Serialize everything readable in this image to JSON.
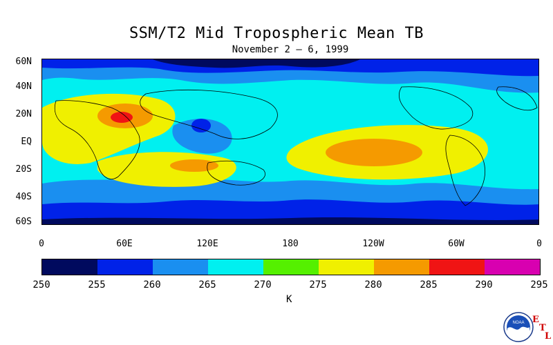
{
  "title": "SSM/T2 Mid Tropospheric Mean TB",
  "subtitle": "November 2 – 6, 1999",
  "latitude_labels": [
    "60N",
    "40N",
    "20N",
    "EQ",
    "20S",
    "40S",
    "60S"
  ],
  "longitude_labels": [
    "0",
    "60E",
    "120E",
    "180",
    "120W",
    "60W",
    "0"
  ],
  "colorbar": {
    "ticks": [
      "250",
      "255",
      "260",
      "265",
      "270",
      "275",
      "280",
      "285",
      "290",
      "295"
    ],
    "colors": [
      "#000a5e",
      "#0022e8",
      "#1a8ff0",
      "#00f0f0",
      "#55f000",
      "#f0f000",
      "#f59a00",
      "#f01414",
      "#d800b0"
    ],
    "unit": "K"
  },
  "field": {
    "variable": "Brightness temperature (K)",
    "background_class": "265-270",
    "regions": [
      {
        "name": "north-band-mid",
        "class": "260-265"
      },
      {
        "name": "north-polar-band",
        "class": "255-260"
      },
      {
        "name": "north-polar-core",
        "class": "250-255"
      },
      {
        "name": "south-band-mid",
        "class": "260-265"
      },
      {
        "name": "south-polar-band",
        "class": "255-260"
      },
      {
        "name": "south-polar-core",
        "class": "250-255"
      },
      {
        "name": "africa-subtropics",
        "class": "275-280"
      },
      {
        "name": "sahara-arabia",
        "class": "280-285"
      },
      {
        "name": "arabia-core",
        "class": "285-290"
      },
      {
        "name": "central-pacific",
        "class": "275-280"
      },
      {
        "name": "central-pacific-core",
        "class": "280-285"
      },
      {
        "name": "indian-ocean-south",
        "class": "275-280"
      },
      {
        "name": "south-indian-core",
        "class": "280-285"
      },
      {
        "name": "tibet-low",
        "class": "260-265"
      },
      {
        "name": "western-pacific-low",
        "class": "255-260"
      }
    ],
    "logo": {
      "org": "NOAA",
      "letters": [
        "E",
        "T",
        "L"
      ]
    }
  }
}
